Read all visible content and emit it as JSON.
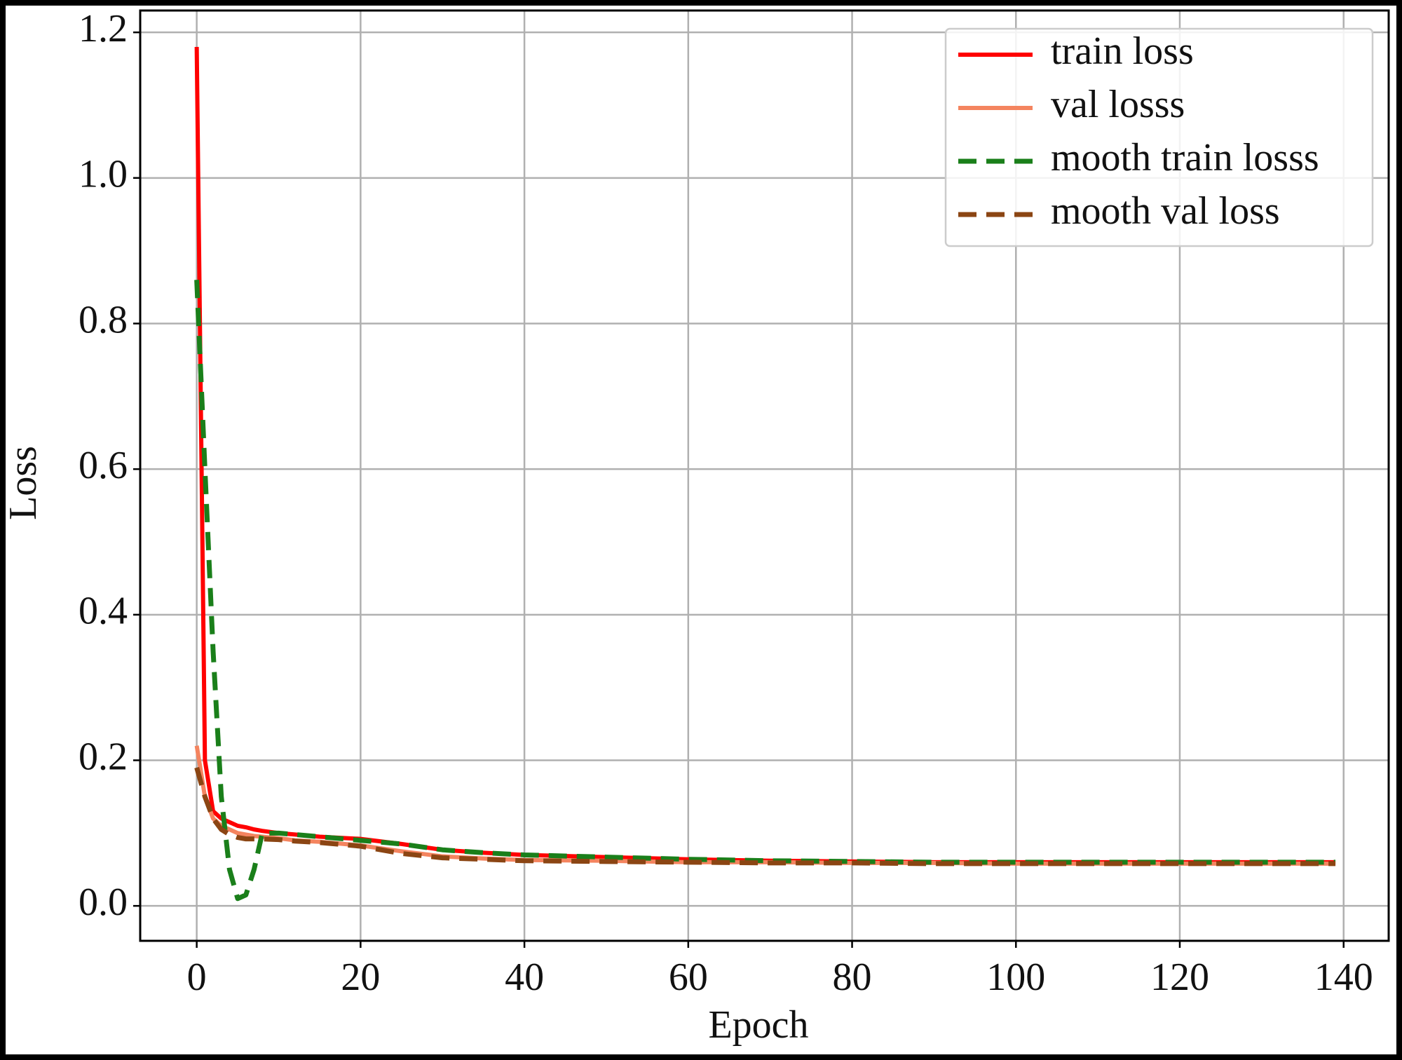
{
  "chart_data": {
    "type": "line",
    "x_label": "Epoch",
    "y_label": "Loss",
    "x": [
      0,
      1,
      2,
      3,
      4,
      5,
      6,
      7,
      8,
      10,
      12,
      15,
      20,
      25,
      30,
      35,
      40,
      50,
      60,
      70,
      80,
      90,
      100,
      110,
      120,
      130,
      139
    ],
    "series": [
      {
        "name": "train loss",
        "color": "#ff0000",
        "linestyle": "solid",
        "values": [
          1.18,
          0.2,
          0.13,
          0.12,
          0.115,
          0.11,
          0.108,
          0.105,
          0.103,
          0.1,
          0.098,
          0.095,
          0.092,
          0.085,
          0.077,
          0.073,
          0.07,
          0.067,
          0.064,
          0.062,
          0.061,
          0.06,
          0.06,
          0.06,
          0.06,
          0.06,
          0.06
        ]
      },
      {
        "name": "val losss",
        "color": "#f4845f",
        "linestyle": "solid",
        "values": [
          0.22,
          0.15,
          0.12,
          0.11,
          0.105,
          0.1,
          0.098,
          0.096,
          0.095,
          0.093,
          0.09,
          0.088,
          0.083,
          0.075,
          0.068,
          0.065,
          0.063,
          0.062,
          0.06,
          0.06,
          0.059,
          0.059,
          0.058,
          0.058,
          0.058,
          0.058,
          0.058
        ]
      },
      {
        "name": "mooth train losss",
        "color": "#1a7f1a",
        "linestyle": "dashed",
        "values": [
          0.86,
          0.6,
          0.35,
          0.15,
          0.05,
          0.01,
          0.015,
          0.05,
          0.1,
          0.1,
          0.098,
          0.095,
          0.09,
          0.085,
          0.077,
          0.073,
          0.07,
          0.067,
          0.064,
          0.062,
          0.061,
          0.06,
          0.06,
          0.06,
          0.06,
          0.06,
          0.06
        ]
      },
      {
        "name": "mooth val loss",
        "color": "#8b4513",
        "linestyle": "dashed",
        "values": [
          0.19,
          0.15,
          0.12,
          0.105,
          0.098,
          0.094,
          0.092,
          0.092,
          0.092,
          0.091,
          0.089,
          0.087,
          0.082,
          0.072,
          0.066,
          0.064,
          0.062,
          0.061,
          0.06,
          0.059,
          0.059,
          0.058,
          0.058,
          0.058,
          0.058,
          0.058,
          0.058
        ]
      }
    ],
    "xlim": [
      -6.9,
      145.5
    ],
    "ylim": [
      -0.048,
      1.23
    ],
    "xticks": [
      0,
      20,
      40,
      60,
      80,
      100,
      120,
      140
    ],
    "yticks": [
      {
        "value": 0,
        "label": "0.0"
      },
      0.2,
      0.4,
      0.6,
      0.8,
      {
        "value": 1,
        "label": "1.0"
      },
      1.2
    ],
    "grid": true,
    "legend": "upper right"
  }
}
